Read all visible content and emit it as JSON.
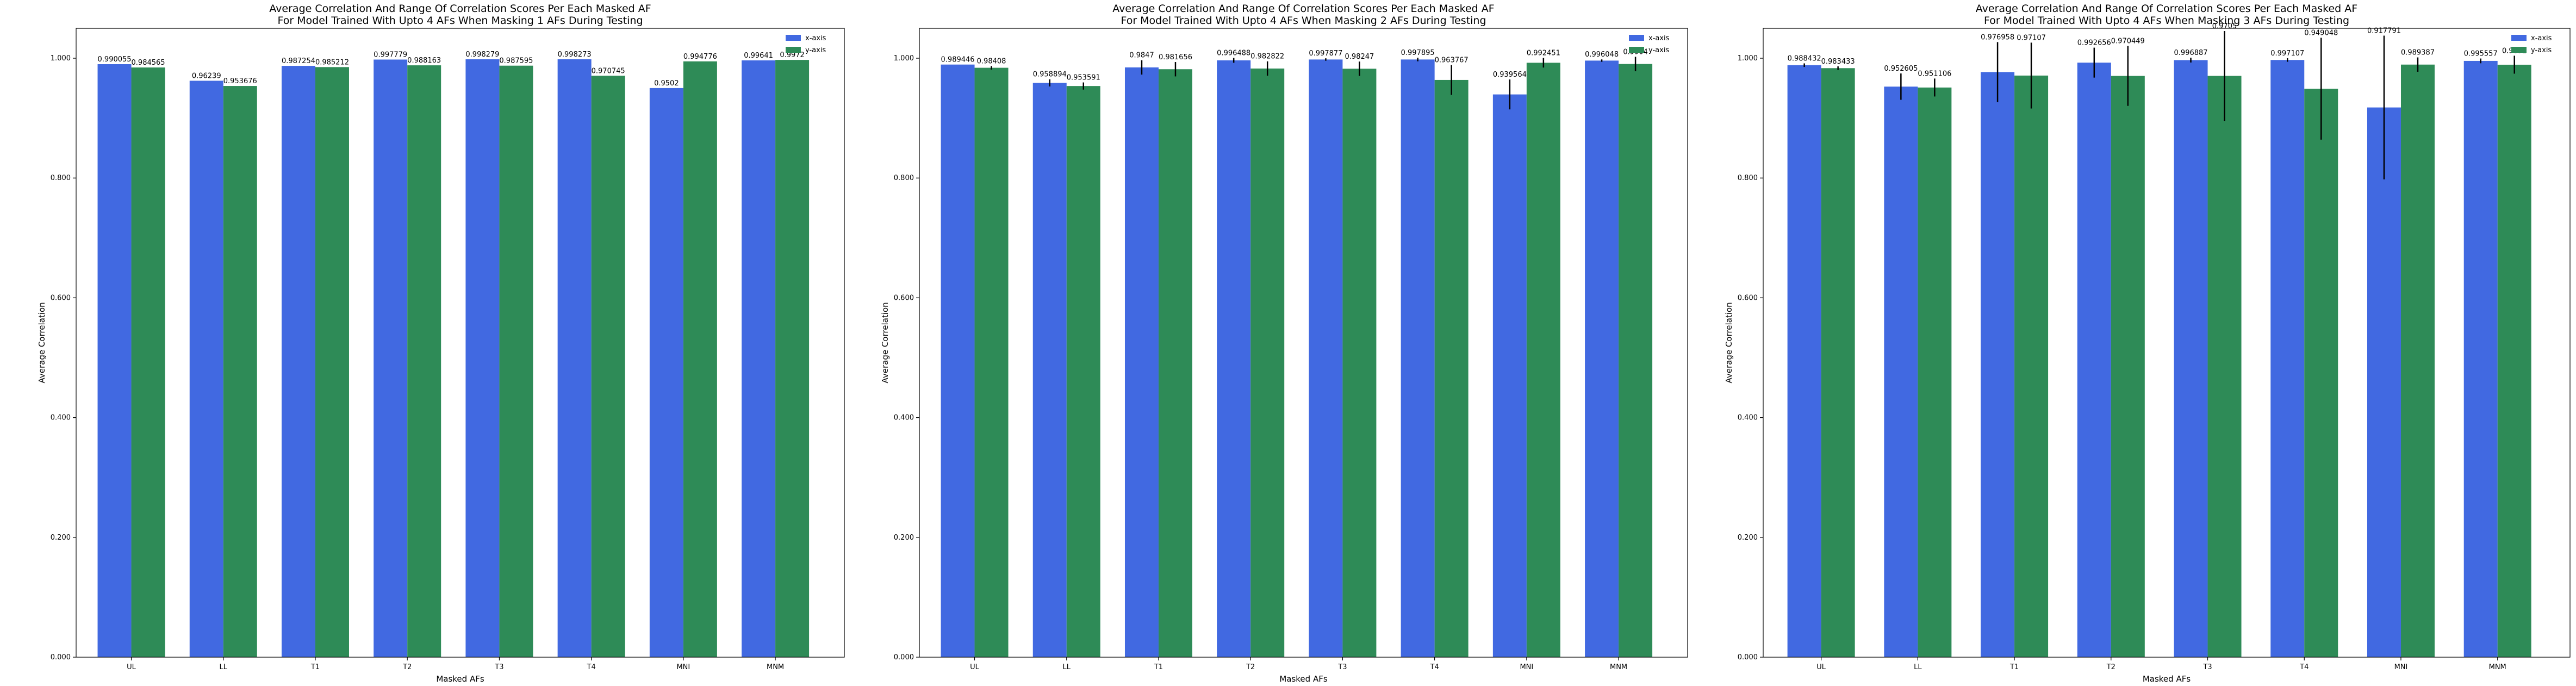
{
  "colors": {
    "x_axis_series": "#4169E1",
    "y_axis_series": "#2E8B57",
    "error_bar": "#000000"
  },
  "chart_data": [
    {
      "type": "bar",
      "title": "Average Correlation And Range Of Correlation Scores Per Each Masked AF",
      "subtitle": "For Model Trained With Upto 4 AFs When Masking 1 AFs During Testing",
      "xlabel": "Masked AFs",
      "ylabel": "Average Correlation",
      "categories": [
        "UL",
        "LL",
        "T1",
        "T2",
        "T3",
        "T4",
        "MNI",
        "MNM"
      ],
      "ylim": [
        0,
        1.05
      ],
      "yticks": [
        "0.000",
        "0.200",
        "0.400",
        "0.600",
        "0.800",
        "1.000"
      ],
      "legend_position": "top-right",
      "series": [
        {
          "name": "x-axis",
          "color": "#4169E1",
          "values": [
            0.990055,
            0.96239,
            0.987254,
            0.997779,
            0.998279,
            0.998273,
            0.9502,
            0.99641
          ],
          "labels": [
            "0.990055",
            "0.96239",
            "0.987254",
            "0.997779",
            "0.998279",
            "0.998273",
            "0.9502",
            "0.99641"
          ],
          "err": [
            0,
            0,
            0,
            0,
            0,
            0,
            0,
            0
          ]
        },
        {
          "name": "y-axis",
          "color": "#2E8B57",
          "values": [
            0.984565,
            0.953676,
            0.985212,
            0.988163,
            0.987595,
            0.970745,
            0.994776,
            0.9972
          ],
          "labels": [
            "0.984565",
            "0.953676",
            "0.985212",
            "0.988163",
            "0.987595",
            "0.970745",
            "0.994776",
            "0.9972"
          ],
          "err": [
            0,
            0,
            0,
            0,
            0,
            0,
            0,
            0
          ]
        }
      ]
    },
    {
      "type": "bar",
      "title": "Average Correlation And Range Of Correlation Scores Per Each Masked AF",
      "subtitle": "For Model Trained With Upto 4 AFs When Masking 2 AFs During Testing",
      "xlabel": "Masked AFs",
      "ylabel": "Average Correlation",
      "categories": [
        "UL",
        "LL",
        "T1",
        "T2",
        "T3",
        "T4",
        "MNI",
        "MNM"
      ],
      "ylim": [
        0,
        1.05
      ],
      "yticks": [
        "0.000",
        "0.200",
        "0.400",
        "0.600",
        "0.800",
        "1.000"
      ],
      "legend_position": "top-right",
      "series": [
        {
          "name": "x-axis",
          "color": "#4169E1",
          "values": [
            0.989446,
            0.958894,
            0.9847,
            0.996488,
            0.997877,
            0.997895,
            0.939564,
            0.996048
          ],
          "labels": [
            "0.989446",
            "0.958894",
            "0.9847",
            "0.996488",
            "0.997877",
            "0.997895",
            "0.939564",
            "0.996048"
          ],
          "err": [
            0,
            0.006,
            0.012,
            0.004,
            0.002,
            0.003,
            0.025,
            0.002
          ]
        },
        {
          "name": "y-axis",
          "color": "#2E8B57",
          "values": [
            0.98408,
            0.953591,
            0.981656,
            0.982822,
            0.98247,
            0.963767,
            0.992451,
            0.9904
          ],
          "labels": [
            "0.98408",
            "0.953591",
            "0.981656",
            "0.982822",
            "0.98247",
            "0.963767",
            "0.992451",
            "0.9904"
          ],
          "err": [
            0.003,
            0.006,
            0.012,
            0.012,
            0.012,
            0.025,
            0.008,
            0.012
          ]
        }
      ]
    },
    {
      "type": "bar",
      "title": "Average Correlation And Range Of Correlation Scores Per Each Masked AF",
      "subtitle": "For Model Trained With Upto 4 AFs When Masking 3 AFs During Testing",
      "xlabel": "Masked AFs",
      "ylabel": "Average Correlation",
      "categories": [
        "UL",
        "LL",
        "T1",
        "T2",
        "T3",
        "T4",
        "MNI",
        "MNM"
      ],
      "ylim": [
        0,
        1.05
      ],
      "yticks": [
        "0.000",
        "0.200",
        "0.400",
        "0.600",
        "0.800",
        "1.000"
      ],
      "legend_position": "top-right",
      "series": [
        {
          "name": "x-axis",
          "color": "#4169E1",
          "values": [
            0.988432,
            0.952605,
            0.976958,
            0.992656,
            0.996887,
            0.997107,
            0.917791,
            0.995557
          ],
          "labels": [
            "0.988432",
            "0.952605",
            "0.976958",
            "0.992656",
            "0.996887",
            "0.997107",
            "0.917791",
            "0.995557"
          ],
          "err": [
            0.003,
            0.022,
            0.05,
            0.025,
            0.004,
            0.003,
            0.12,
            0.004
          ]
        },
        {
          "name": "y-axis",
          "color": "#2E8B57",
          "values": [
            0.983433,
            0.951106,
            0.97107,
            0.970449,
            0.9705,
            0.949048,
            0.989387,
            0.9892
          ],
          "labels": [
            "0.983433",
            "0.951106",
            "0.97107",
            "0.970449",
            "0.9705",
            "0.949048",
            "0.989387",
            "0.9892"
          ],
          "err": [
            0.003,
            0.015,
            0.055,
            0.05,
            0.075,
            0.085,
            0.012,
            0.015
          ]
        }
      ]
    }
  ]
}
